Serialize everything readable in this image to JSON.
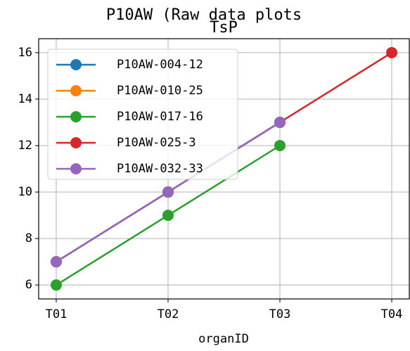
{
  "chart_data": {
    "type": "line",
    "title": "P10AW (Raw data plots",
    "subtitle": "TsP",
    "x_label": "organID",
    "categories": [
      "T01",
      "T02",
      "T03",
      "T04"
    ],
    "series": [
      {
        "name": "P10AW-004-12",
        "color": "#1f77b4",
        "values": [
          7,
          10,
          13,
          null
        ]
      },
      {
        "name": "P10AW-010-25",
        "color": "#ff7f0e",
        "values": [
          7,
          10,
          13,
          null
        ]
      },
      {
        "name": "P10AW-017-16",
        "color": "#2ca02c",
        "values": [
          6,
          9,
          12,
          null
        ]
      },
      {
        "name": "P10AW-025-3",
        "color": "#d62728",
        "values": [
          7,
          10,
          13,
          16
        ]
      },
      {
        "name": "P10AW-032-33",
        "color": "#9467bd",
        "values": [
          7,
          10,
          13,
          null
        ]
      }
    ],
    "ylim": [
      5.4,
      16.6
    ],
    "yticks": [
      6,
      8,
      10,
      12,
      14,
      16
    ],
    "grid": true,
    "legend": "upper left"
  }
}
